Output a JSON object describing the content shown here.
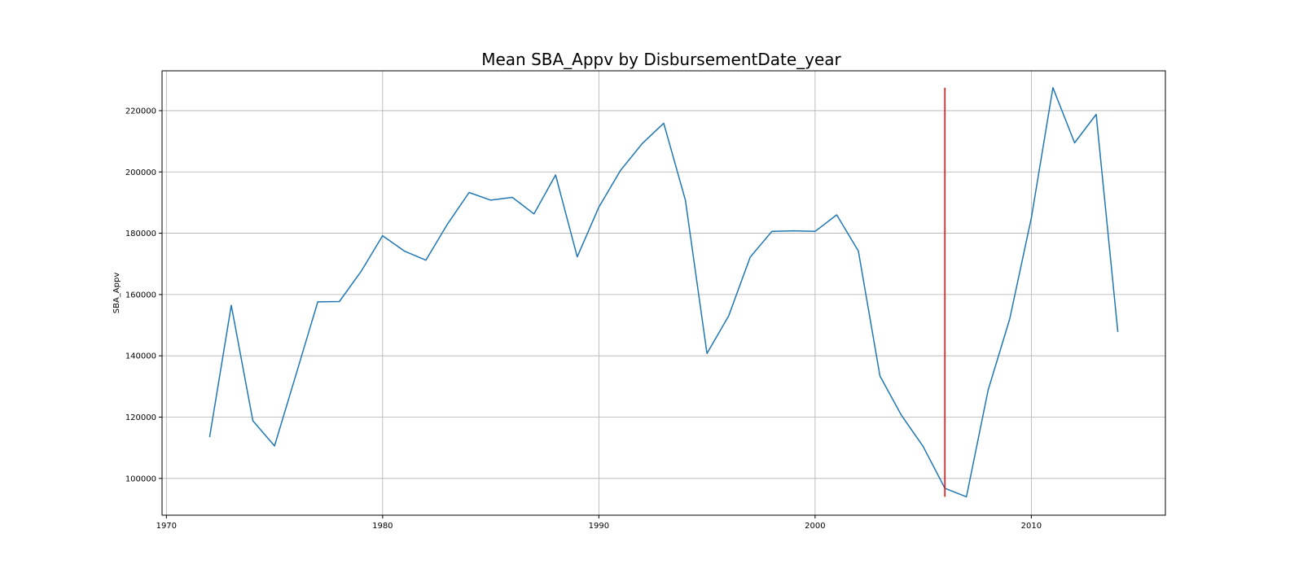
{
  "chart_data": {
    "type": "line",
    "title": "Mean SBA_Appv by DisbursementDate_year",
    "xlabel": "",
    "ylabel": "SBA_Appv",
    "xlim": [
      1969.8,
      2016.2
    ],
    "ylim": [
      88000,
      233000
    ],
    "xticks": [
      1970,
      1980,
      1990,
      2000,
      2010
    ],
    "yticks": [
      100000,
      120000,
      140000,
      160000,
      180000,
      200000,
      220000
    ],
    "grid": true,
    "line_color": "#1f77b4",
    "series": [
      {
        "x": [
          1972,
          1973,
          1974,
          1975,
          1976,
          1977,
          1978,
          1979,
          1980,
          1981,
          1982,
          1983,
          1984,
          1985,
          1986,
          1987,
          1988,
          1989,
          1990,
          1991,
          1992,
          1993,
          1994,
          1995,
          1996,
          1997,
          1998,
          1999,
          2000,
          2001,
          2002,
          2003,
          2004,
          2005,
          2006,
          2007,
          2008,
          2009,
          2010,
          2011,
          2012,
          2013,
          2014
        ],
        "values": [
          113500,
          156500,
          118800,
          110600,
          134000,
          157600,
          157700,
          167500,
          179200,
          174200,
          171200,
          183000,
          193300,
          190800,
          191700,
          186300,
          199000,
          172300,
          188500,
          200500,
          209200,
          215900,
          190800,
          140800,
          153000,
          172200,
          180600,
          180800,
          180600,
          186000,
          174200,
          133400,
          120500,
          110400,
          96800,
          94000,
          128800,
          152000,
          185000,
          227500,
          209500,
          218800,
          147800
        ]
      }
    ],
    "vertical_line": {
      "x": 2006,
      "y_from": 94000,
      "y_to": 227500,
      "color": "#ff0000"
    }
  }
}
